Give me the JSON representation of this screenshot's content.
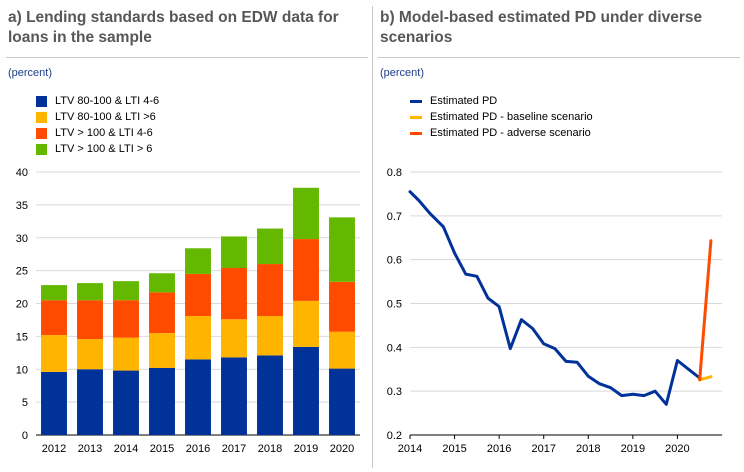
{
  "panel_a": {
    "title": "a) Lending standards based on EDW data for loans in the sample",
    "unit": "(percent)"
  },
  "panel_b": {
    "title": "b) Model-based estimated PD under diverse scenarios",
    "unit": "(percent)"
  },
  "colors": {
    "ltv_80_100_lti_4_6": "#003299",
    "ltv_80_100_lti_gt6": "#ffb400",
    "ltv_gt100_lti_4_6": "#ff4b00",
    "ltv_gt100_lti_gt6": "#65b800",
    "estimated_pd": "#003299",
    "baseline": "#ffb400",
    "adverse": "#ff4b00",
    "grid": "#d9d9d9"
  },
  "chart_data": [
    {
      "type": "bar",
      "stacked": true,
      "title": "a) Lending standards based on EDW data for loans in the sample",
      "ylabel": "(percent)",
      "ylim": [
        0,
        40
      ],
      "yticks": [
        "0",
        "5",
        "10",
        "15",
        "20",
        "25",
        "30",
        "35",
        "40"
      ],
      "categories": [
        "2012",
        "2013",
        "2014",
        "2015",
        "2016",
        "2017",
        "2018",
        "2019",
        "2020"
      ],
      "legend_position": "top-left",
      "series": [
        {
          "name": "LTV 80-100 & LTI 4-6",
          "color": "#003299",
          "values": [
            9.6,
            10.0,
            9.8,
            10.2,
            11.5,
            11.8,
            12.1,
            13.4,
            10.1
          ]
        },
        {
          "name": "LTV 80-100 & LTI >6",
          "color": "#ffb400",
          "values": [
            5.6,
            4.6,
            5.0,
            5.3,
            6.6,
            5.8,
            6.0,
            7.0,
            5.6
          ]
        },
        {
          "name": "LTV > 100 & LTI 4-6",
          "color": "#ff4b00",
          "values": [
            5.3,
            5.9,
            5.7,
            6.2,
            6.4,
            7.8,
            7.9,
            9.4,
            7.6
          ]
        },
        {
          "name": "LTV > 100 & LTI > 6",
          "color": "#65b800",
          "values": [
            2.3,
            2.6,
            2.9,
            2.9,
            3.9,
            4.8,
            5.4,
            7.8,
            9.8
          ]
        }
      ]
    },
    {
      "type": "line",
      "title": "b) Model-based estimated PD under diverse scenarios",
      "ylabel": "(percent)",
      "xlim": [
        2014,
        2021.0
      ],
      "ylim": [
        0.2,
        0.8
      ],
      "yticks": [
        "0.2",
        "0.3",
        "0.4",
        "0.5",
        "0.6",
        "0.7",
        "0.8"
      ],
      "xticks": [
        "2014",
        "2015",
        "2016",
        "2017",
        "2018",
        "2019",
        "2020"
      ],
      "legend_position": "top-left",
      "series": [
        {
          "name": "Estimated PD",
          "color": "#003299",
          "x": [
            2014.0,
            2014.2,
            2014.45,
            2014.75,
            2015.0,
            2015.25,
            2015.5,
            2015.75,
            2016.0,
            2016.25,
            2016.5,
            2016.75,
            2017.0,
            2017.25,
            2017.5,
            2017.75,
            2018.0,
            2018.25,
            2018.5,
            2018.75,
            2019.0,
            2019.25,
            2019.5,
            2019.75,
            2020.0,
            2020.25,
            2020.5
          ],
          "y": [
            0.755,
            0.735,
            0.705,
            0.675,
            0.615,
            0.567,
            0.562,
            0.512,
            0.493,
            0.397,
            0.463,
            0.443,
            0.408,
            0.397,
            0.368,
            0.366,
            0.334,
            0.317,
            0.308,
            0.29,
            0.293,
            0.29,
            0.3,
            0.27,
            0.37,
            0.35,
            0.33
          ]
        },
        {
          "name": "Estimated PD - baseline scenario",
          "color": "#ffb400",
          "x": [
            2020.5,
            2020.75
          ],
          "y": [
            0.326,
            0.333
          ]
        },
        {
          "name": "Estimated PD - adverse scenario",
          "color": "#ff4b00",
          "x": [
            2020.5,
            2020.75
          ],
          "y": [
            0.326,
            0.643
          ]
        }
      ]
    }
  ]
}
